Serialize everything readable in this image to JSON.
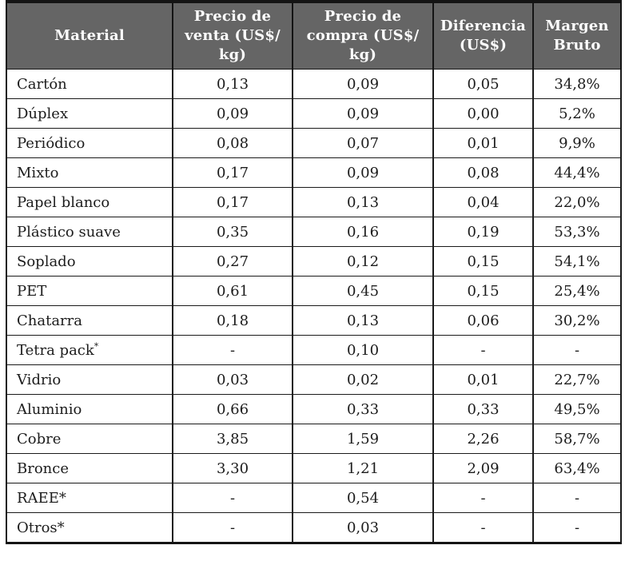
{
  "table": {
    "columns": [
      {
        "key": "material",
        "label": "Material"
      },
      {
        "key": "venta",
        "label": "Precio de\nventa (US$/\nkg)"
      },
      {
        "key": "compra",
        "label": "Precio de\ncompra (US$/\nkg)"
      },
      {
        "key": "diferencia",
        "label": "Diferencia\n(US$)"
      },
      {
        "key": "margen",
        "label": "Margen\nBruto"
      }
    ],
    "rows": [
      {
        "material": "Cartón",
        "venta": "0,13",
        "compra": "0,09",
        "diferencia": "0,05",
        "margen": "34,8%"
      },
      {
        "material": "Dúplex",
        "venta": "0,09",
        "compra": "0,09",
        "diferencia": "0,00",
        "margen": "5,2%"
      },
      {
        "material": "Periódico",
        "venta": "0,08",
        "compra": "0,07",
        "diferencia": "0,01",
        "margen": "9,9%"
      },
      {
        "material": "Mixto",
        "venta": "0,17",
        "compra": "0,09",
        "diferencia": "0,08",
        "margen": "44,4%"
      },
      {
        "material": "Papel blanco",
        "venta": "0,17",
        "compra": "0,13",
        "diferencia": "0,04",
        "margen": "22,0%"
      },
      {
        "material": "Plástico suave",
        "venta": "0,35",
        "compra": "0,16",
        "diferencia": "0,19",
        "margen": "53,3%"
      },
      {
        "material": "Soplado",
        "venta": "0,27",
        "compra": "0,12",
        "diferencia": "0,15",
        "margen": "54,1%"
      },
      {
        "material": "PET",
        "venta": "0,61",
        "compra": "0,45",
        "diferencia": "0,15",
        "margen": "25,4%"
      },
      {
        "material": "Chatarra",
        "venta": "0,18",
        "compra": "0,13",
        "diferencia": "0,06",
        "margen": "30,2%"
      },
      {
        "material": "Tetra pack",
        "material_sup": "*",
        "venta": "-",
        "compra": "0,10",
        "diferencia": "-",
        "margen": "-"
      },
      {
        "material": "Vidrio",
        "venta": "0,03",
        "compra": "0,02",
        "diferencia": "0,01",
        "margen": "22,7%"
      },
      {
        "material": "Aluminio",
        "venta": "0,66",
        "compra": "0,33",
        "diferencia": "0,33",
        "margen": "49,5%"
      },
      {
        "material": "Cobre",
        "venta": "3,85",
        "compra": "1,59",
        "diferencia": "2,26",
        "margen": "58,7%"
      },
      {
        "material": "Bronce",
        "venta": "3,30",
        "compra": "1,21",
        "diferencia": "2,09",
        "margen": "63,4%"
      },
      {
        "material": "RAEE*",
        "venta": "-",
        "compra": "0,54",
        "diferencia": "-",
        "margen": "-"
      },
      {
        "material": "Otros*",
        "venta": "-",
        "compra": "0,03",
        "diferencia": "-",
        "margen": "-"
      }
    ],
    "colors": {
      "header_bg": "#656565",
      "header_text": "#fdfdfd",
      "body_text": "#1c1c1c",
      "border": "#141414"
    }
  }
}
